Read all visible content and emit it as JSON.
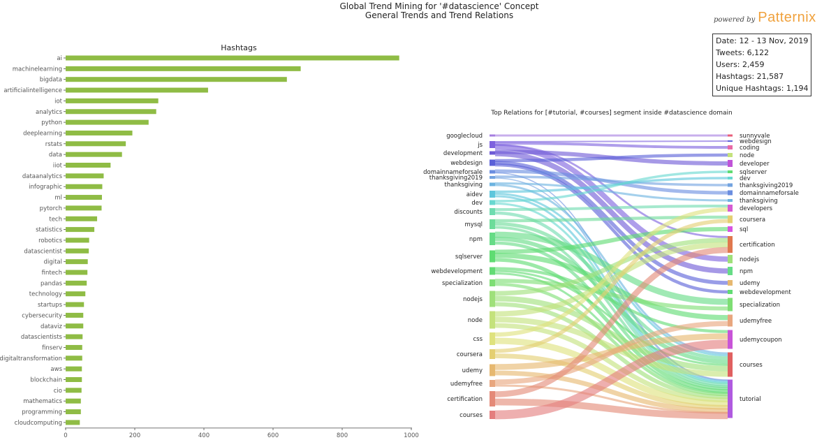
{
  "header": {
    "title_line1": "Global Trend Mining for '#datascience' Concept",
    "title_line2": "General Trends and Trend Relations",
    "powered_by": "powered by",
    "brand_name": "Patternix"
  },
  "stats": {
    "date": "Date: 12 - 13 Nov, 2019",
    "tweets": "Tweets: 6,122",
    "users": "Users: 2,459",
    "hashtags": "Hashtags: 21,587",
    "unique_hashtags": "Unique Hashtags: 1,194"
  },
  "colors": {
    "bar": "#8fbc45",
    "axis": "#444444",
    "tick_label": "#555555"
  },
  "chart_data": [
    {
      "type": "bar",
      "orientation": "horizontal",
      "title": "Hashtags",
      "xlabel": "",
      "ylabel": "",
      "xlim": [
        0,
        1000
      ],
      "xticks": [
        0,
        200,
        400,
        600,
        800,
        1000
      ],
      "categories": [
        "ai",
        "machinelearning",
        "bigdata",
        "artificialintelligence",
        "iot",
        "analytics",
        "python",
        "deeplearning",
        "rstats",
        "data",
        "iiot",
        "dataanalytics",
        "infographic",
        "ml",
        "pytorch",
        "tech",
        "statistics",
        "robotics",
        "datascientist",
        "digital",
        "fintech",
        "pandas",
        "technology",
        "startups",
        "cybersecurity",
        "dataviz",
        "datascientists",
        "finserv",
        "digitaltransformation",
        "aws",
        "blockchain",
        "cio",
        "mathematics",
        "programming",
        "cloudcomputing"
      ],
      "values": [
        965,
        680,
        640,
        412,
        268,
        262,
        240,
        193,
        174,
        163,
        130,
        110,
        106,
        105,
        104,
        91,
        83,
        68,
        67,
        64,
        63,
        61,
        57,
        53,
        51,
        51,
        49,
        48,
        48,
        47,
        47,
        46,
        44,
        44,
        41
      ]
    },
    {
      "type": "sankey",
      "title": "Top Relations for [#tutorial, #courses] segment inside #datascience domain",
      "sources": [
        {
          "name": "googlecloud",
          "color": "#a67ee0"
        },
        {
          "name": "js",
          "color": "#7e62de"
        },
        {
          "name": "development",
          "color": "#6f5bd6"
        },
        {
          "name": "webdesign",
          "color": "#5b61d8"
        },
        {
          "name": "domainnameforsale",
          "color": "#6b8ee0"
        },
        {
          "name": "thanksgiving2019",
          "color": "#73a3e0"
        },
        {
          "name": "thanksgiving",
          "color": "#6cb3e0"
        },
        {
          "name": "aidev",
          "color": "#5ec6dc"
        },
        {
          "name": "dev",
          "color": "#68d8d0"
        },
        {
          "name": "discounts",
          "color": "#6fdcb0"
        },
        {
          "name": "mysql",
          "color": "#6ddc9a"
        },
        {
          "name": "npm",
          "color": "#66dc86"
        },
        {
          "name": "sqlserver",
          "color": "#5fdc72"
        },
        {
          "name": "webdevelopment",
          "color": "#62dc74"
        },
        {
          "name": "specialization",
          "color": "#7ede74"
        },
        {
          "name": "nodejs",
          "color": "#9fe07a"
        },
        {
          "name": "node",
          "color": "#c4e27c"
        },
        {
          "name": "css",
          "color": "#dfe27e"
        },
        {
          "name": "coursera",
          "color": "#e4cf72"
        },
        {
          "name": "udemy",
          "color": "#e6b870"
        },
        {
          "name": "udemyfree",
          "color": "#e8a67e"
        },
        {
          "name": "certification",
          "color": "#e48a78"
        },
        {
          "name": "courses",
          "color": "#e47e7e"
        }
      ],
      "targets": [
        {
          "name": "sunnyvale",
          "color": "#e85e7a"
        },
        {
          "name": "webdesign",
          "color": "#5b61d8"
        },
        {
          "name": "coding",
          "color": "#e86aa6"
        },
        {
          "name": "node",
          "color": "#c4e27c"
        },
        {
          "name": "developer",
          "color": "#c054d8"
        },
        {
          "name": "sqlserver",
          "color": "#5fdc72"
        },
        {
          "name": "dev",
          "color": "#68d8d0"
        },
        {
          "name": "thanksgiving2019",
          "color": "#73a3e0"
        },
        {
          "name": "domainnameforsale",
          "color": "#6b8ee0"
        },
        {
          "name": "thanksgiving",
          "color": "#6cb3e0"
        },
        {
          "name": "developers",
          "color": "#d65cd2"
        },
        {
          "name": "coursera",
          "color": "#e4cf72"
        },
        {
          "name": "sql",
          "color": "#d854e0"
        },
        {
          "name": "certification",
          "color": "#e0784e"
        },
        {
          "name": "nodejs",
          "color": "#9fe07a"
        },
        {
          "name": "npm",
          "color": "#66dc86"
        },
        {
          "name": "udemy",
          "color": "#e6b870"
        },
        {
          "name": "webdevelopment",
          "color": "#62dc74"
        },
        {
          "name": "specialization",
          "color": "#7ede74"
        },
        {
          "name": "udemyfree",
          "color": "#e8a67e"
        },
        {
          "name": "udemycoupon",
          "color": "#c854d8"
        },
        {
          "name": "courses",
          "color": "#e06060"
        },
        {
          "name": "tutorial",
          "color": "#b05ae0"
        }
      ]
    }
  ]
}
